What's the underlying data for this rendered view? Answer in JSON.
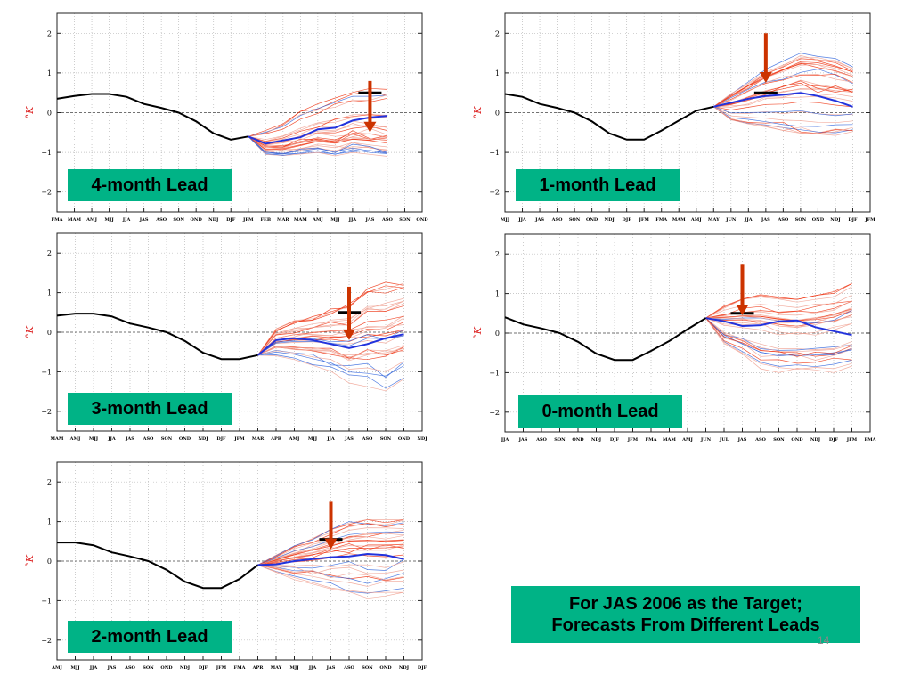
{
  "summary": {
    "line1": "For JAS 2006 as the Target;",
    "line2": "Forecasts From Different Leads"
  },
  "page_number": "14",
  "colors": {
    "observed": "#000000",
    "ensemble_mean": "#2233dd",
    "member_blue": "#3366dd",
    "member_red": "#ee3311",
    "member_light_red": "#f0a090",
    "arrow": "#cc3300",
    "ylabel": "#dd2222",
    "label_box": "#00b386"
  },
  "chart_data": [
    {
      "id": "4-month",
      "type": "line",
      "title": "4-month Lead",
      "ylabel": "°K",
      "ylim": [
        -2.5,
        2.5
      ],
      "yticks": [
        -2,
        -1,
        0,
        1,
        2
      ],
      "grid": true,
      "categories": [
        "FMA",
        "MAM",
        "AMJ",
        "MJJ",
        "JJA",
        "JAS",
        "ASO",
        "SON",
        "OND",
        "NDJ",
        "DJF",
        "JFM",
        "FEB",
        "MAR",
        "MAM",
        "AMJ",
        "MJJ",
        "JJA",
        "JAS",
        "ASO",
        "SON",
        "OND"
      ],
      "observed": [
        0.35,
        0.42,
        0.47,
        0.47,
        0.4,
        0.22,
        0.12,
        0.0,
        -0.22,
        -0.52,
        -0.68,
        -0.6
      ],
      "ensemble_mean": [
        -0.6,
        -0.78,
        -0.7,
        -0.62,
        -0.42,
        -0.38,
        -0.2,
        -0.12,
        -0.08
      ],
      "spread_low": [
        -0.6,
        -1.05,
        -1.1,
        -1.05,
        -1.0,
        -1.1,
        -1.0,
        -1.05,
        -1.1
      ],
      "spread_high": [
        -0.6,
        -0.4,
        -0.2,
        0.1,
        0.3,
        0.5,
        0.65,
        0.7,
        0.7
      ],
      "target_category": "JAS",
      "target_marker_value": 0.5,
      "arrow_from": 0.8,
      "arrow_to": -0.5
    },
    {
      "id": "1-month",
      "type": "line",
      "title": "1-month Lead",
      "ylabel": "°K",
      "ylim": [
        -2.5,
        2.5
      ],
      "yticks": [
        -2,
        -1,
        0,
        1,
        2
      ],
      "grid": true,
      "categories": [
        "MJJ",
        "JJA",
        "JAS",
        "ASO",
        "SON",
        "OND",
        "NDJ",
        "DJF",
        "JFM",
        "FMA",
        "MAM",
        "AMJ",
        "MAY",
        "JUN",
        "JJA",
        "JAS",
        "ASO",
        "SON",
        "OND",
        "NDJ",
        "DJF",
        "JFM"
      ],
      "observed": [
        0.47,
        0.4,
        0.22,
        0.12,
        0.0,
        -0.22,
        -0.52,
        -0.68,
        -0.68,
        -0.45,
        -0.2,
        0.05,
        0.15
      ],
      "ensemble_mean": [
        0.15,
        0.25,
        0.35,
        0.42,
        0.45,
        0.5,
        0.42,
        0.3,
        0.15
      ],
      "spread_low": [
        0.15,
        -0.2,
        -0.3,
        -0.4,
        -0.5,
        -0.55,
        -0.6,
        -0.6,
        -0.5
      ],
      "spread_high": [
        0.15,
        0.5,
        0.8,
        1.1,
        1.3,
        1.5,
        1.5,
        1.4,
        1.2
      ],
      "target_category": "JAS",
      "target_marker_value": 0.5,
      "arrow_from": 2.0,
      "arrow_to": 0.75
    },
    {
      "id": "3-month",
      "type": "line",
      "title": "3-month Lead",
      "ylabel": "°K",
      "ylim": [
        -2.5,
        2.5
      ],
      "yticks": [
        -2,
        -1,
        0,
        1,
        2
      ],
      "grid": true,
      "categories": [
        "MAM",
        "AMJ",
        "MJJ",
        "JJA",
        "JAS",
        "ASO",
        "SON",
        "OND",
        "NDJ",
        "DJF",
        "JFM",
        "MAR",
        "APR",
        "AMJ",
        "MJJ",
        "JJA",
        "JAS",
        "ASO",
        "SON",
        "OND",
        "NDJ"
      ],
      "observed": [
        0.42,
        0.47,
        0.47,
        0.4,
        0.22,
        0.12,
        0.0,
        -0.22,
        -0.52,
        -0.68,
        -0.68,
        -0.58
      ],
      "ensemble_mean": [
        -0.58,
        -0.2,
        -0.15,
        -0.2,
        -0.3,
        -0.4,
        -0.3,
        -0.15,
        -0.05
      ],
      "spread_low": [
        -0.58,
        -0.6,
        -0.7,
        -0.85,
        -1.0,
        -1.3,
        -1.4,
        -1.5,
        -1.2
      ],
      "spread_high": [
        -0.58,
        0.1,
        0.3,
        0.45,
        0.6,
        0.8,
        1.2,
        1.3,
        1.3
      ],
      "target_category": "JAS",
      "target_marker_value": 0.5,
      "arrow_from": 1.15,
      "arrow_to": -0.2
    },
    {
      "id": "0-month",
      "type": "line",
      "title": "0-month Lead",
      "ylabel": "°K",
      "ylim": [
        -2.5,
        2.5
      ],
      "yticks": [
        -2,
        -1,
        0,
        1,
        2
      ],
      "grid": true,
      "categories": [
        "JJA",
        "JAS",
        "ASO",
        "SON",
        "OND",
        "NDJ",
        "DJF",
        "JFM",
        "FMA",
        "MAM",
        "AMJ",
        "JUN",
        "JUL",
        "JAS",
        "ASO",
        "SON",
        "OND",
        "NDJ",
        "DJF",
        "JFM",
        "FMA"
      ],
      "observed": [
        0.4,
        0.22,
        0.12,
        0.0,
        -0.22,
        -0.52,
        -0.68,
        -0.68,
        -0.45,
        -0.2,
        0.1,
        0.38
      ],
      "ensemble_mean": [
        0.38,
        0.3,
        0.18,
        0.2,
        0.3,
        0.32,
        0.15,
        0.05,
        -0.05
      ],
      "spread_low": [
        0.38,
        -0.3,
        -0.6,
        -0.9,
        -1.0,
        -1.0,
        -1.0,
        -1.0,
        -0.9
      ],
      "spread_high": [
        0.38,
        0.7,
        0.9,
        1.0,
        0.95,
        0.9,
        1.0,
        1.1,
        1.3
      ],
      "target_category": "JAS",
      "target_marker_value": 0.5,
      "arrow_from": 1.75,
      "arrow_to": 0.45
    },
    {
      "id": "2-month",
      "type": "line",
      "title": "2-month Lead",
      "ylabel": "°K",
      "ylim": [
        -2.5,
        2.5
      ],
      "yticks": [
        -2,
        -1,
        0,
        1,
        2
      ],
      "grid": true,
      "categories": [
        "AMJ",
        "MJJ",
        "JJA",
        "JAS",
        "ASO",
        "SON",
        "OND",
        "NDJ",
        "DJF",
        "JFM",
        "FMA",
        "APR",
        "MAY",
        "MJJ",
        "JJA",
        "JAS",
        "ASO",
        "SON",
        "OND",
        "NDJ",
        "DJF"
      ],
      "observed": [
        0.47,
        0.47,
        0.4,
        0.22,
        0.12,
        0.0,
        -0.22,
        -0.52,
        -0.68,
        -0.68,
        -0.45,
        -0.1
      ],
      "ensemble_mean": [
        -0.1,
        -0.08,
        0.0,
        0.05,
        0.1,
        0.12,
        0.18,
        0.15,
        0.05
      ],
      "spread_low": [
        -0.1,
        -0.3,
        -0.5,
        -0.65,
        -0.8,
        -0.9,
        -1.0,
        -1.0,
        -0.9
      ],
      "spread_high": [
        -0.1,
        0.15,
        0.4,
        0.6,
        0.8,
        1.0,
        1.05,
        1.05,
        1.05
      ],
      "target_category": "JAS",
      "target_marker_value": 0.55,
      "arrow_from": 1.5,
      "arrow_to": 0.3
    }
  ]
}
